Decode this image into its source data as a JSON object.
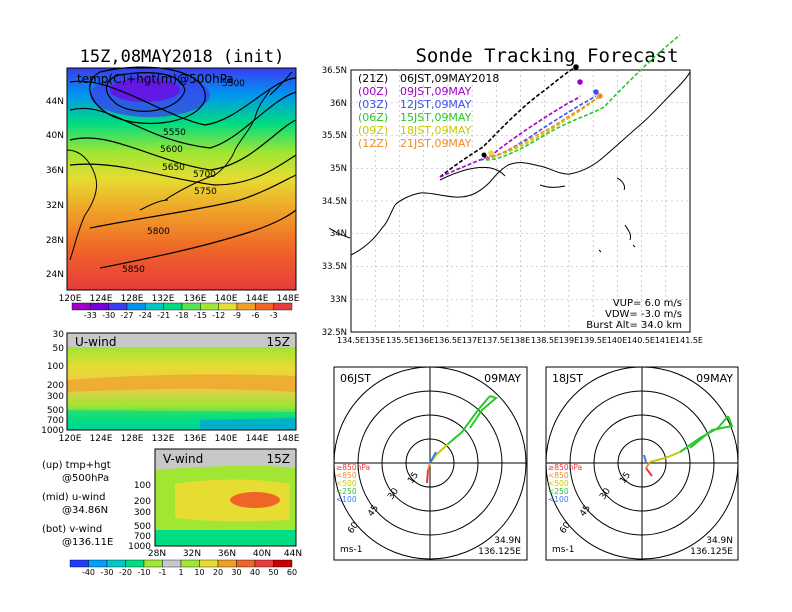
{
  "init_title": "15Z,08MAY2018 (init)",
  "forecast_title": "Sonde Tracking Forecast",
  "top_map": {
    "subtitle": "temp(C)+hgt(m)@500hPa",
    "lat_labels": [
      "44N",
      "40N",
      "36N",
      "32N",
      "28N",
      "24N"
    ],
    "lon_labels": [
      "120E",
      "124E",
      "128E",
      "132E",
      "136E",
      "140E",
      "144E",
      "148E"
    ],
    "contour_labels": [
      "5500",
      "5550",
      "5600",
      "5650",
      "5700",
      "5750",
      "5800",
      "5850"
    ],
    "colorbar_labels": [
      "-33",
      "-30",
      "-27",
      "-24",
      "-21",
      "-18",
      "-15",
      "-12",
      "-9",
      "-6",
      "-3"
    ],
    "colorbar_colors": [
      "#a000c8",
      "#7800dc",
      "#3c3cf0",
      "#0096f0",
      "#00c8c8",
      "#00dc80",
      "#50e650",
      "#a0e632",
      "#e6dc32",
      "#f0a028",
      "#f06428",
      "#e63c3c"
    ]
  },
  "uwind_panel": {
    "title": "U-wind",
    "time": "15Z",
    "y_labels": [
      "30",
      "50",
      "100",
      "200",
      "300",
      "500",
      "700",
      "1000"
    ],
    "x_labels": [
      "120E",
      "124E",
      "128E",
      "132E",
      "136E",
      "140E",
      "144E",
      "148E"
    ]
  },
  "vwind_panel": {
    "title": "V-wind",
    "time": "15Z",
    "y_labels": [
      "100",
      "200",
      "300",
      "500",
      "700",
      "1000"
    ],
    "x_labels": [
      "28N",
      "32N",
      "36N",
      "40N",
      "44N"
    ]
  },
  "notes": [
    {
      "label": "(up) tmp+hgt",
      "sub": "@500hPa"
    },
    {
      "label": "(mid) u-wind",
      "sub": "@34.86N"
    },
    {
      "label": "(bot) v-wind",
      "sub": "@136.11E"
    }
  ],
  "wind_colorbar": {
    "labels": [
      "-40",
      "-30",
      "-20",
      "-10",
      "-1",
      "1",
      "10",
      "20",
      "30",
      "40",
      "50",
      "60"
    ],
    "colors": [
      "#1e3cff",
      "#00a0ff",
      "#00c8c8",
      "#00dc82",
      "#a0e632",
      "#c8c8c8",
      "#a0e632",
      "#e6dc32",
      "#f0a028",
      "#f06428",
      "#e63c3c",
      "#c80000"
    ]
  },
  "track_map": {
    "lat_labels": [
      "36.5N",
      "36N",
      "35.5N",
      "35N",
      "34.5N",
      "34N",
      "33.5N",
      "33N",
      "32.5N"
    ],
    "lon_labels": [
      "134.5E",
      "135E",
      "135.5E",
      "136E",
      "136.5E",
      "137E",
      "137.5E",
      "138E",
      "138.5E",
      "139E",
      "139.5E",
      "140E",
      "140.5E",
      "141E",
      "141.5E"
    ],
    "legend": [
      {
        "run": "(21Z)",
        "time": "06JST,09MAY2018",
        "color": "#000000"
      },
      {
        "run": "(00Z)",
        "time": "09JST,09MAY",
        "color": "#a000c8"
      },
      {
        "run": "(03Z)",
        "time": "12JST,09MAY",
        "color": "#3c50f0"
      },
      {
        "run": "(06Z)",
        "time": "15JST,09MAY",
        "color": "#28c828"
      },
      {
        "run": "(09Z)",
        "time": "18JST,09MAY",
        "color": "#c8c800"
      },
      {
        "run": "(12Z)",
        "time": "21JST,09MAY",
        "color": "#f08c28"
      }
    ],
    "params": [
      "VUP=  6.0 m/s",
      "VDW= -3.0 m/s",
      "Burst Alt= 34.0 km"
    ]
  },
  "hodographs": [
    {
      "time": "06JST",
      "date": "09MAY",
      "lat": "34.9N",
      "lon": "136.125E",
      "unit": "ms-1",
      "ring_labels": [
        "15",
        "30",
        "45",
        "60"
      ],
      "levels": [
        {
          "label": "≥850hPa",
          "color": "#e63c3c"
        },
        {
          "label": "<850",
          "color": "#f08c28"
        },
        {
          "label": "<500",
          "color": "#c8c800"
        },
        {
          "label": "<250",
          "color": "#28c828"
        },
        {
          "label": "<100",
          "color": "#3c78f0"
        }
      ]
    },
    {
      "time": "18JST",
      "date": "09MAY",
      "lat": "34.9N",
      "lon": "136.125E",
      "unit": "ms-1",
      "ring_labels": [
        "15",
        "30",
        "45",
        "60"
      ],
      "levels": [
        {
          "label": "≥850hPa",
          "color": "#e63c3c"
        },
        {
          "label": "<850",
          "color": "#f08c28"
        },
        {
          "label": "<500",
          "color": "#c8c800"
        },
        {
          "label": "<250",
          "color": "#28c828"
        },
        {
          "label": "<100",
          "color": "#3c78f0"
        }
      ]
    }
  ]
}
